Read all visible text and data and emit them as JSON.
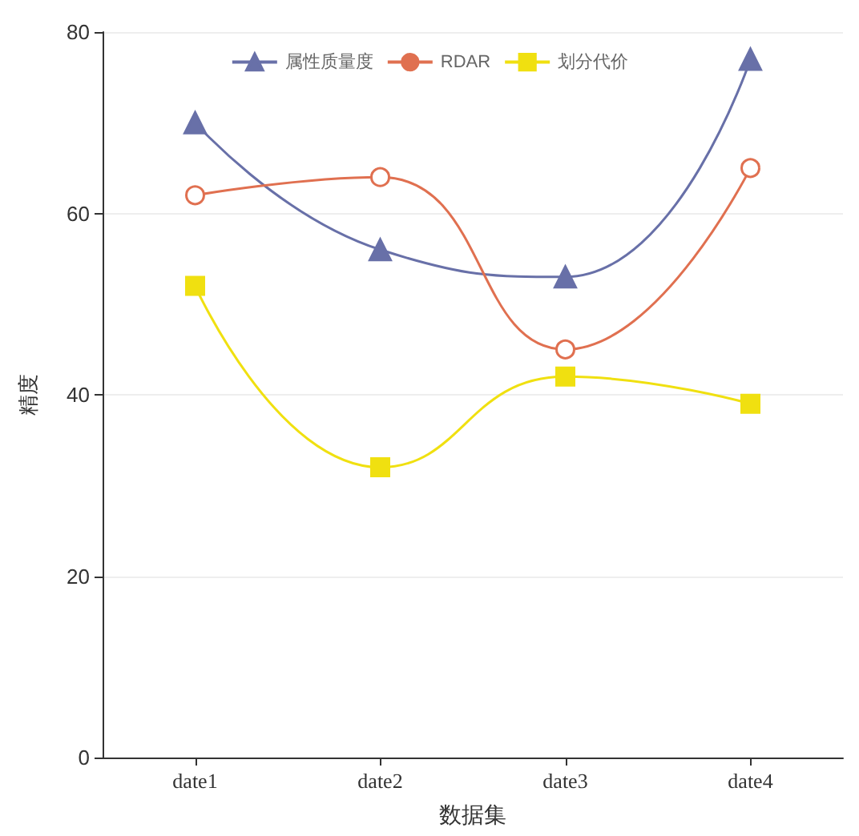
{
  "chart_data": {
    "type": "line",
    "xlabel": "数据集",
    "ylabel": "精度",
    "categories": [
      "date1",
      "date2",
      "date3",
      "date4"
    ],
    "series": [
      {
        "name": "属性质量度",
        "color": "#6870a8",
        "marker": "triangle",
        "values": [
          70,
          56,
          53,
          77
        ]
      },
      {
        "name": "RDAR",
        "color": "#e07050",
        "marker": "circle",
        "values": [
          62,
          64,
          45,
          65
        ]
      },
      {
        "name": "划分代价",
        "color": "#f0e010",
        "marker": "square",
        "values": [
          52,
          32,
          42,
          39
        ]
      }
    ],
    "ylim": [
      0,
      80
    ],
    "yticks": [
      0,
      20,
      40,
      60,
      80
    ],
    "grid": "y",
    "legend": "top"
  }
}
